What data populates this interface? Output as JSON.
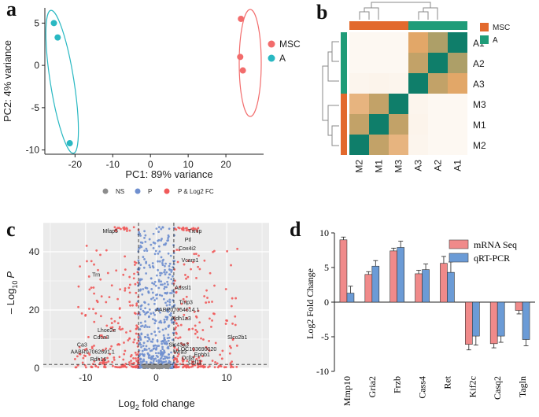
{
  "colors": {
    "msc": "#f26c6c",
    "a": "#29b8c2",
    "heat_msc": "#e2692d",
    "heat_a": "#1f9c79",
    "ns": "#8c8c8c",
    "p": "#6f8fcf",
    "p_fc": "#f05a5a",
    "mrna": "#f08a8a",
    "qrt": "#6b9bd6"
  },
  "panels": {
    "a": "a",
    "b": "b",
    "c": "c",
    "d": "d"
  },
  "chart_data": [
    {
      "panel": "a",
      "type": "scatter",
      "xlabel": "PC1: 89% variance",
      "ylabel": "PC2: 4% variance",
      "xlim": [
        -28,
        30
      ],
      "ylim": [
        -10.5,
        6.8
      ],
      "xticks": [
        -20,
        -10,
        0,
        10,
        20
      ],
      "yticks": [
        -10,
        -5,
        0,
        5
      ],
      "xtick_labels": [
        "-20",
        "-10",
        "0",
        "10",
        "20"
      ],
      "ytick_labels": [
        "-10",
        "-5",
        "0",
        "5"
      ],
      "series": [
        {
          "name": "MSC",
          "points": [
            [
              24.0,
              5.5
            ],
            [
              23.8,
              1.0
            ],
            [
              24.5,
              -0.6
            ]
          ]
        },
        {
          "name": "A",
          "points": [
            [
              -25.6,
              5.0
            ],
            [
              -24.6,
              3.3
            ],
            [
              -21.4,
              -9.2
            ]
          ]
        }
      ],
      "legend": [
        "MSC",
        "A"
      ]
    },
    {
      "panel": "b",
      "type": "heatmap",
      "row_labels": [
        "A1",
        "A2",
        "A3",
        "M3",
        "M1",
        "M2"
      ],
      "col_labels": [
        "M2",
        "M1",
        "M3",
        "A3",
        "A2",
        "A1"
      ],
      "row_groups": [
        "A",
        "A",
        "A",
        "MSC",
        "MSC",
        "MSC"
      ],
      "col_groups": [
        "MSC",
        "MSC",
        "MSC",
        "A",
        "A",
        "A"
      ],
      "values": [
        [
          0.02,
          0.02,
          0.02,
          0.62,
          0.72,
          1.0
        ],
        [
          0.02,
          0.02,
          0.02,
          0.68,
          1.0,
          0.72
        ],
        [
          0.06,
          0.08,
          0.06,
          1.0,
          0.68,
          0.62
        ],
        [
          0.55,
          0.68,
          1.0,
          0.06,
          0.02,
          0.02
        ],
        [
          0.68,
          1.0,
          0.68,
          0.08,
          0.02,
          0.02
        ],
        [
          1.0,
          0.68,
          0.55,
          0.06,
          0.02,
          0.02
        ]
      ],
      "legend": [
        "MSC",
        "A"
      ]
    },
    {
      "panel": "c",
      "type": "scatter",
      "legend": [
        "NS",
        "P",
        "P & Log2 FC"
      ],
      "xlabel_main": "Log",
      "xlabel_sub": "2",
      "xlabel_rest": " fold change",
      "ylabel_main": "– Log",
      "ylabel_sub": "10",
      "ylabel_p": "P",
      "xlim": [
        -16,
        16
      ],
      "ylim": [
        0,
        50
      ],
      "xticks": [
        -10,
        0,
        10
      ],
      "yticks": [
        0,
        20,
        40
      ],
      "xtick_labels": [
        "-10",
        "0",
        "10"
      ],
      "ytick_labels": [
        "0",
        "20",
        "40"
      ],
      "fc_cutoff": 2.5,
      "p_cutoff": 1.3,
      "labels": [
        {
          "text": "Mfap5",
          "x": -6.5,
          "y": 46.5
        },
        {
          "text": "Txnip",
          "x": 5.5,
          "y": 46.5
        },
        {
          "text": "Ptl",
          "x": 4.5,
          "y": 43.5
        },
        {
          "text": "Cox4i2",
          "x": 4.4,
          "y": 40.5
        },
        {
          "text": "Vcam1",
          "x": 4.8,
          "y": 36.5
        },
        {
          "text": "Trn",
          "x": -8.5,
          "y": 31.5
        },
        {
          "text": "Adssl1",
          "x": 3.8,
          "y": 27.0
        },
        {
          "text": "Tnip3",
          "x": 4.2,
          "y": 22.0
        },
        {
          "text": "AABR07054614.1",
          "x": 3.0,
          "y": 19.5
        },
        {
          "text": "Aldh1a3",
          "x": 3.5,
          "y": 16.5
        },
        {
          "text": "Lhoe2e",
          "x": -7.0,
          "y": 12.5
        },
        {
          "text": "Cdca3",
          "x": -7.8,
          "y": 10.0
        },
        {
          "text": "Slco2b1",
          "x": 11.5,
          "y": 10.0
        },
        {
          "text": "Ca3",
          "x": -10.5,
          "y": 7.5
        },
        {
          "text": "Slc43a3",
          "x": 3.2,
          "y": 7.5
        },
        {
          "text": "LOC103690020",
          "x": 5.8,
          "y": 6.0
        },
        {
          "text": "AABR07062691.1",
          "x": -9.0,
          "y": 5.0
        },
        {
          "text": "Wra3",
          "x": 3.4,
          "y": 5.0
        },
        {
          "text": "Ephb1",
          "x": 6.5,
          "y": 4.0
        },
        {
          "text": "Oclla",
          "x": 4.5,
          "y": 3.0
        },
        {
          "text": "Rdh16",
          "x": -8.2,
          "y": 2.5
        },
        {
          "text": "Ccl11",
          "x": 5.5,
          "y": 1.5
        }
      ]
    },
    {
      "panel": "d",
      "type": "bar",
      "ylabel": "Log2 Fold Change",
      "ylim": [
        -10,
        10
      ],
      "yticks": [
        -10,
        -5,
        0,
        5,
        10
      ],
      "ytick_labels": [
        "-10",
        "-5",
        "0",
        "5",
        "10"
      ],
      "categories": [
        "Mmp10",
        "Gria2",
        "Frzb",
        "Cass4",
        "Ret",
        "Kif2c",
        "Casq2",
        "Tagln"
      ],
      "series": [
        {
          "name": "mRNA Seq",
          "values": [
            9.0,
            4.0,
            7.4,
            4.1,
            5.6,
            -6.1,
            -6.0,
            -1.2
          ],
          "errors": [
            0.4,
            0.4,
            0.4,
            0.5,
            1.0,
            0.8,
            0.6,
            0.5
          ]
        },
        {
          "name": "qRT-PCR",
          "values": [
            1.3,
            5.2,
            7.9,
            4.7,
            4.3,
            -4.9,
            -4.9,
            -5.4
          ],
          "errors": [
            1.0,
            0.8,
            0.9,
            0.8,
            1.5,
            1.3,
            0.9,
            0.9
          ]
        }
      ]
    }
  ]
}
